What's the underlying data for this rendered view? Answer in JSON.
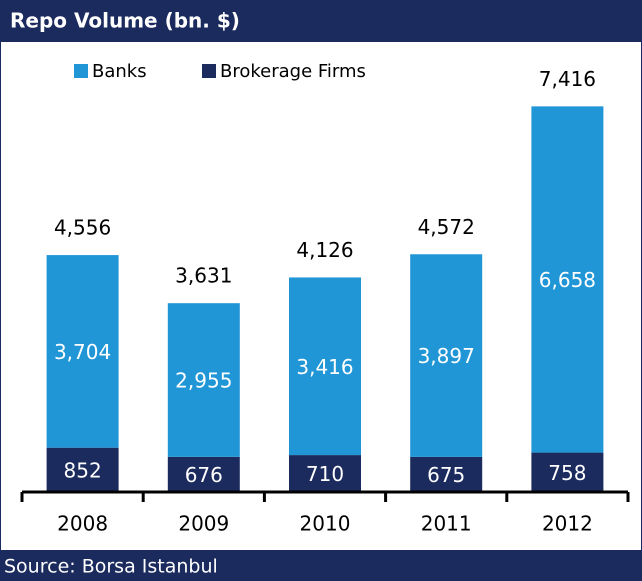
{
  "chart_data": {
    "type": "stacked_bar",
    "title": "Repo Volume (bn. $)",
    "source": "Source: Borsa Istanbul",
    "categories": [
      "2008",
      "2009",
      "2010",
      "2011",
      "2012"
    ],
    "series": [
      {
        "name": "Brokerage Firms",
        "color": "#1b2b5e",
        "values": [
          852,
          676,
          710,
          675,
          758
        ],
        "value_labels": [
          "852",
          "676",
          "710",
          "675",
          "758"
        ]
      },
      {
        "name": "Banks",
        "color": "#2196d6",
        "values": [
          3704,
          2955,
          3416,
          3897,
          6658
        ],
        "value_labels": [
          "3,704",
          "2,955",
          "3,416",
          "3,897",
          "6,658"
        ]
      }
    ],
    "totals": [
      4556,
      3631,
      4126,
      4572,
      7416
    ],
    "total_labels": [
      "4,556",
      "3,631",
      "4,126",
      "4,572",
      "7,416"
    ],
    "ylim": [
      0,
      8000
    ],
    "legend": "top-left"
  }
}
